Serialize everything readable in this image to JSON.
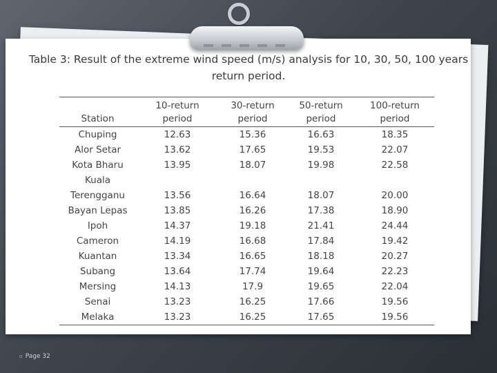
{
  "caption": "Table 3: Result of the extreme wind speed (m/s) analysis for 10, 30, 50, 100 years return period.",
  "table": {
    "headers": [
      [
        "",
        "Station"
      ],
      [
        "10-return",
        "period"
      ],
      [
        "30-return",
        "period"
      ],
      [
        "50-return",
        "period"
      ],
      [
        "100-return",
        "period"
      ]
    ],
    "rows": [
      [
        "Chuping",
        "12.63",
        "15.36",
        "16.63",
        "18.35"
      ],
      [
        "Alor Setar",
        "13.62",
        "17.65",
        "19.53",
        "22.07"
      ],
      [
        "Kota Bharu",
        "13.95",
        "18.07",
        "19.98",
        "22.58"
      ],
      [
        "Kuala Terengganu",
        "13.56",
        "16.64",
        "18.07",
        "20.00"
      ],
      [
        "Bayan Lepas",
        "13.85",
        "16.26",
        "17.38",
        "18.90"
      ],
      [
        "Ipoh",
        "14.37",
        "19.18",
        "21.41",
        "24.44"
      ],
      [
        "Cameron",
        "14.19",
        "16.68",
        "17.84",
        "19.42"
      ],
      [
        "Kuantan",
        "13.34",
        "16.65",
        "18.18",
        "20.27"
      ],
      [
        "Subang",
        "13.64",
        "17.74",
        "19.64",
        "22.23"
      ],
      [
        "Mersing",
        "14.13",
        "17.9",
        "19.65",
        "22.04"
      ],
      [
        "Senai",
        "13.23",
        "16.25",
        "17.66",
        "19.56"
      ],
      [
        "Melaka",
        "13.23",
        "16.25",
        "17.65",
        "19.56"
      ]
    ]
  },
  "footer": {
    "bullet": "▫",
    "page_label": "Page 32"
  }
}
